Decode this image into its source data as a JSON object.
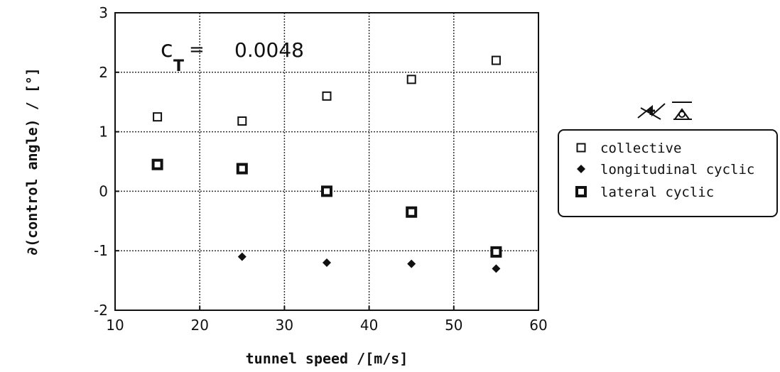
{
  "chart_data": {
    "type": "scatter",
    "xlabel": "tunnel speed /[m/s]",
    "ylabel": "∂(control angle) / [°]",
    "xlim": [
      10,
      60
    ],
    "ylim": [
      -2,
      3
    ],
    "xticks": [
      10,
      20,
      30,
      40,
      50,
      60
    ],
    "yticks": [
      -2,
      -1,
      0,
      1,
      2,
      3
    ],
    "grid": true,
    "legend_position": "right",
    "annotation": {
      "c_symbol": "c",
      "subscript": "T",
      "equals": "=",
      "value": "0.0048"
    },
    "series": [
      {
        "name": "collective",
        "marker": "hollow-square",
        "x": [
          15,
          25,
          35,
          45,
          55
        ],
        "y": [
          1.25,
          1.18,
          1.6,
          1.88,
          2.2
        ]
      },
      {
        "name": "longitudinal cyclic",
        "marker": "filled-diamond",
        "x": [
          25,
          35,
          45,
          55
        ],
        "y": [
          -1.1,
          -1.2,
          -1.22,
          -1.3
        ]
      },
      {
        "name": "lateral cyclic",
        "marker": "bold-square",
        "x": [
          15,
          25,
          35,
          45,
          55
        ],
        "y": [
          0.45,
          0.38,
          0.0,
          -0.35,
          -1.02
        ]
      }
    ]
  }
}
